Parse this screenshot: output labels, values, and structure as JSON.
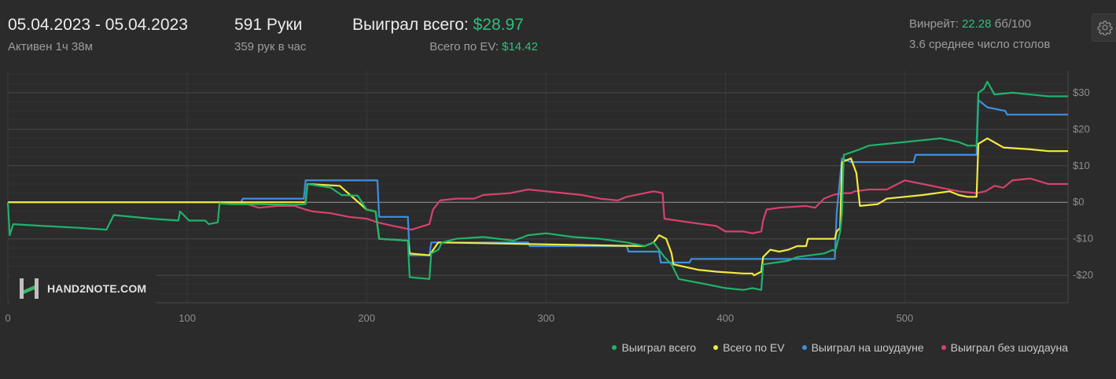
{
  "header": {
    "date_range": "05.04.2023 - 05.04.2023",
    "active": "Активен 1ч 38м",
    "hands": "591 Руки",
    "hands_per_hour": "359 рук в час",
    "won_label": "Выиграл всего: ",
    "won_value": "$28.97",
    "ev_label": "Всего по EV: ",
    "ev_value": "$14.42",
    "winrate_label": "Винрейт: ",
    "winrate_value": "22.28",
    "winrate_unit": " бб/100",
    "tables": "3.6 среднее число столов",
    "settings_icon": "gear-icon"
  },
  "logo": {
    "text": "HAND2NOTE.COM"
  },
  "colors": {
    "green": "#1fb36c",
    "yellow": "#f3ea3f",
    "blue": "#3f8fe0",
    "pink": "#d9406e"
  },
  "chart_data": {
    "type": "line",
    "x_ticks": [
      0,
      100,
      200,
      300,
      400,
      500
    ],
    "y_ticks": [
      30,
      20,
      10,
      0,
      -10,
      -20
    ],
    "y_tick_labels": [
      "$30",
      "$20",
      "$10",
      "$0",
      "-$10",
      "-$20"
    ],
    "xlim": [
      0,
      591
    ],
    "ylim": [
      -27.5,
      36
    ],
    "grid": true,
    "legend_position": "bottom-right",
    "series": [
      {
        "name": "Выиграл всего",
        "color": "#1fb36c",
        "points": [
          [
            0,
            0
          ],
          [
            1,
            -9
          ],
          [
            3,
            -6
          ],
          [
            20,
            -6.5
          ],
          [
            40,
            -7
          ],
          [
            55,
            -7.5
          ],
          [
            59,
            -3.5
          ],
          [
            80,
            -4.5
          ],
          [
            95,
            -5
          ],
          [
            96,
            -2.5
          ],
          [
            101,
            -5
          ],
          [
            110,
            -5
          ],
          [
            112,
            -6
          ],
          [
            117,
            -5.5
          ],
          [
            118,
            -0.3
          ],
          [
            125,
            -0.5
          ],
          [
            140,
            -0.5
          ],
          [
            160,
            -0.7
          ],
          [
            166,
            -0.5
          ],
          [
            167,
            5
          ],
          [
            180,
            4
          ],
          [
            186,
            2
          ],
          [
            195,
            1.8
          ],
          [
            200,
            -2
          ],
          [
            205,
            -2.5
          ],
          [
            207,
            -10
          ],
          [
            223,
            -10.5
          ],
          [
            224,
            -20.5
          ],
          [
            235,
            -21
          ],
          [
            236,
            -14
          ],
          [
            240,
            -13
          ],
          [
            242,
            -11
          ],
          [
            250,
            -10
          ],
          [
            265,
            -9.5
          ],
          [
            282,
            -10.5
          ],
          [
            290,
            -9
          ],
          [
            300,
            -8.5
          ],
          [
            315,
            -9.5
          ],
          [
            330,
            -10
          ],
          [
            345,
            -11
          ],
          [
            355,
            -12
          ],
          [
            360,
            -11
          ],
          [
            366,
            -15
          ],
          [
            370,
            -17
          ],
          [
            374,
            -21
          ],
          [
            390,
            -22.5
          ],
          [
            400,
            -23.5
          ],
          [
            410,
            -24
          ],
          [
            415,
            -23.5
          ],
          [
            420,
            -24
          ],
          [
            421,
            -17
          ],
          [
            435,
            -16
          ],
          [
            440,
            -15
          ],
          [
            455,
            -14
          ],
          [
            460,
            -13
          ],
          [
            461,
            -13.5
          ],
          [
            462,
            -12
          ],
          [
            464,
            -8
          ],
          [
            465,
            -3
          ],
          [
            466,
            13
          ],
          [
            475,
            14.5
          ],
          [
            480,
            15.5
          ],
          [
            490,
            16
          ],
          [
            500,
            16.5
          ],
          [
            510,
            17
          ],
          [
            520,
            17.5
          ],
          [
            530,
            16.5
          ],
          [
            535,
            15.5
          ],
          [
            540,
            15.5
          ],
          [
            541,
            30
          ],
          [
            544,
            31
          ],
          [
            546,
            33
          ],
          [
            550,
            29.5
          ],
          [
            560,
            30
          ],
          [
            570,
            29.5
          ],
          [
            580,
            29
          ],
          [
            591,
            29
          ]
        ]
      },
      {
        "name": "Всего по EV",
        "color": "#f3ea3f",
        "points": [
          [
            0,
            0
          ],
          [
            166,
            0
          ],
          [
            167,
            5
          ],
          [
            185,
            4.5
          ],
          [
            200,
            -2
          ],
          [
            205,
            -2.5
          ],
          [
            207,
            -10
          ],
          [
            223,
            -10.5
          ],
          [
            224,
            -14
          ],
          [
            235,
            -14.5
          ],
          [
            240,
            -11
          ],
          [
            355,
            -12
          ],
          [
            360,
            -11
          ],
          [
            363,
            -9
          ],
          [
            367,
            -10
          ],
          [
            370,
            -14
          ],
          [
            371,
            -17
          ],
          [
            385,
            -18.5
          ],
          [
            395,
            -19
          ],
          [
            410,
            -19.5
          ],
          [
            415,
            -19.5
          ],
          [
            416,
            -20
          ],
          [
            420,
            -19
          ],
          [
            421,
            -15
          ],
          [
            425,
            -13
          ],
          [
            430,
            -13.5
          ],
          [
            435,
            -13
          ],
          [
            440,
            -12
          ],
          [
            445,
            -12
          ],
          [
            446,
            -10
          ],
          [
            460,
            -10
          ],
          [
            461,
            -10
          ],
          [
            462,
            -8
          ],
          [
            464,
            -7
          ],
          [
            465,
            11
          ],
          [
            470,
            12
          ],
          [
            473,
            8
          ],
          [
            475,
            -1
          ],
          [
            485,
            -0.5
          ],
          [
            490,
            1
          ],
          [
            510,
            2
          ],
          [
            525,
            3
          ],
          [
            530,
            2
          ],
          [
            535,
            1.5
          ],
          [
            540,
            1.5
          ],
          [
            541,
            16
          ],
          [
            546,
            17.5
          ],
          [
            555,
            15
          ],
          [
            570,
            14.5
          ],
          [
            580,
            14
          ],
          [
            591,
            14
          ]
        ]
      },
      {
        "name": "Выиграл на шоудауне",
        "color": "#3f8fe0",
        "points": [
          [
            0,
            0
          ],
          [
            130,
            0
          ],
          [
            131,
            1
          ],
          [
            165,
            1
          ],
          [
            166,
            6
          ],
          [
            206,
            6
          ],
          [
            207,
            -4
          ],
          [
            223,
            -4
          ],
          [
            224,
            -14.5
          ],
          [
            235,
            -14.5
          ],
          [
            236,
            -11
          ],
          [
            290,
            -11
          ],
          [
            291,
            -12
          ],
          [
            345,
            -12
          ],
          [
            346,
            -13.5
          ],
          [
            363,
            -13.5
          ],
          [
            364,
            -16.5
          ],
          [
            380,
            -16.5
          ],
          [
            381,
            -15.5
          ],
          [
            461,
            -15.5
          ],
          [
            462,
            -3
          ],
          [
            465,
            12
          ],
          [
            470,
            11
          ],
          [
            480,
            11
          ],
          [
            505,
            11
          ],
          [
            506,
            13
          ],
          [
            540,
            13
          ],
          [
            541,
            28
          ],
          [
            546,
            26
          ],
          [
            556,
            25
          ],
          [
            557,
            24
          ],
          [
            591,
            24
          ]
        ]
      },
      {
        "name": "Выиграл без шоудауна",
        "color": "#d9406e",
        "points": [
          [
            0,
            0
          ],
          [
            130,
            0
          ],
          [
            140,
            -1.5
          ],
          [
            150,
            -1
          ],
          [
            160,
            -1
          ],
          [
            166,
            -2
          ],
          [
            170,
            -2.5
          ],
          [
            180,
            -3
          ],
          [
            190,
            -4
          ],
          [
            200,
            -4.5
          ],
          [
            206,
            -5.5
          ],
          [
            215,
            -6.5
          ],
          [
            225,
            -7.5
          ],
          [
            235,
            -6
          ],
          [
            237,
            -2
          ],
          [
            241,
            0.5
          ],
          [
            250,
            1
          ],
          [
            260,
            1
          ],
          [
            265,
            2
          ],
          [
            280,
            2.5
          ],
          [
            290,
            3.5
          ],
          [
            300,
            3
          ],
          [
            310,
            2.5
          ],
          [
            320,
            2
          ],
          [
            330,
            1
          ],
          [
            340,
            0.5
          ],
          [
            345,
            1.5
          ],
          [
            360,
            3
          ],
          [
            365,
            2.5
          ],
          [
            366,
            -4.5
          ],
          [
            380,
            -5.5
          ],
          [
            395,
            -6.5
          ],
          [
            400,
            -8
          ],
          [
            410,
            -8
          ],
          [
            415,
            -8.5
          ],
          [
            420,
            -8
          ],
          [
            421,
            -5
          ],
          [
            423,
            -2
          ],
          [
            430,
            -1.5
          ],
          [
            445,
            -1
          ],
          [
            450,
            -1.5
          ],
          [
            455,
            1
          ],
          [
            460,
            2
          ],
          [
            465,
            2.5
          ],
          [
            470,
            2.5
          ],
          [
            472,
            3
          ],
          [
            480,
            3.5
          ],
          [
            490,
            3.5
          ],
          [
            500,
            6
          ],
          [
            510,
            5
          ],
          [
            520,
            4
          ],
          [
            530,
            3
          ],
          [
            540,
            2.5
          ],
          [
            545,
            3
          ],
          [
            550,
            4.5
          ],
          [
            555,
            4
          ],
          [
            560,
            6
          ],
          [
            570,
            6.5
          ],
          [
            580,
            5
          ],
          [
            591,
            5
          ]
        ]
      }
    ]
  }
}
